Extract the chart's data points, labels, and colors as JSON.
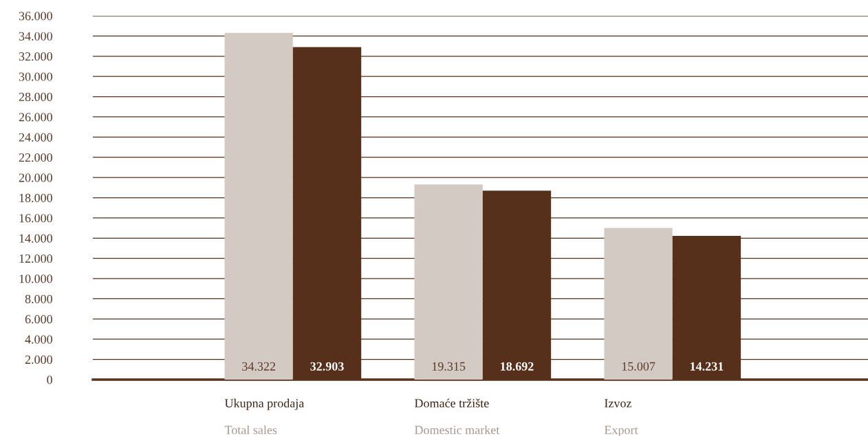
{
  "chart_data": {
    "type": "bar",
    "categories": [
      "Ukupna prodaja\nTotal sales",
      "Domaće tržište\nDomestic market",
      "Izvoz\nExport"
    ],
    "series": [
      {
        "color": "#d4cac4",
        "values": [
          34322,
          19315,
          15007
        ],
        "value_labels": [
          "34.322",
          "19.315",
          "15.007"
        ]
      },
      {
        "color": "#56301a",
        "values": [
          32903,
          18692,
          14231
        ],
        "value_labels": [
          "32.903",
          "18.692",
          "14.231"
        ]
      }
    ],
    "ylim": [
      0,
      36000
    ],
    "yticks": [
      {
        "value": 0,
        "label": "0"
      },
      {
        "value": 2000,
        "label": "2.000"
      },
      {
        "value": 4000,
        "label": "4.000"
      },
      {
        "value": 6000,
        "label": "6.000"
      },
      {
        "value": 8000,
        "label": "8.000"
      },
      {
        "value": 10000,
        "label": "10.000"
      },
      {
        "value": 12000,
        "label": "12.000"
      },
      {
        "value": 14000,
        "label": "14.000"
      },
      {
        "value": 16000,
        "label": "16.000"
      },
      {
        "value": 18000,
        "label": "18.000"
      },
      {
        "value": 20000,
        "label": "20.000"
      },
      {
        "value": 22000,
        "label": "22.000"
      },
      {
        "value": 24000,
        "label": "24.000"
      },
      {
        "value": 26000,
        "label": "26.000"
      },
      {
        "value": 28000,
        "label": "28.000"
      },
      {
        "value": 30000,
        "label": "30.000"
      },
      {
        "value": 32000,
        "label": "32.000"
      },
      {
        "value": 34000,
        "label": "34.000"
      },
      {
        "value": 36000,
        "label": "36.000"
      }
    ],
    "grid": "y"
  }
}
